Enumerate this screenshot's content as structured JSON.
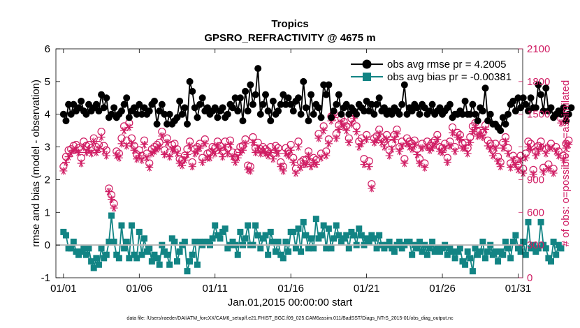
{
  "chart_data": {
    "type": "line",
    "title": "Tropics",
    "subtitle": "GPSRO_REFRACTIVITY @ 4675 m",
    "xlabel": "Jan.01,2015 00:00:00 start",
    "ylabel_left": "rmse and bias (model - observation)",
    "ylabel_right": "# of obs: o=possible; ∗=assimilated",
    "footnote": "data file: /Users/raeder/DAI/ATM_forcXX/CAM6_setup/f.e21.FHIST_BGC.f09_025.CAM6assim.011/BadSST/Diags_NTrS_2015-01/obs_diag_output.nc",
    "xlim": [
      0.5,
      31.3
    ],
    "ylim_left": [
      -1,
      6
    ],
    "ylim_right": [
      0,
      2100
    ],
    "x_ticks": [
      1,
      6,
      11,
      16,
      21,
      26,
      31
    ],
    "x_tick_labels": [
      "01/01",
      "01/06",
      "01/11",
      "01/16",
      "01/21",
      "01/26",
      "01/31"
    ],
    "y_ticks_left": [
      -1,
      0,
      1,
      2,
      3,
      4,
      5,
      6
    ],
    "y_ticks_right": [
      0,
      300,
      600,
      900,
      1200,
      1500,
      1800,
      2100
    ],
    "colors": {
      "rmse": "#000000",
      "bias": "#128484",
      "obs": "#d01c63",
      "zero": "#b9b9b9"
    },
    "series": [
      {
        "name": "obs avg rmse pr = 4.2005",
        "axis": "left",
        "values": [
          4.0,
          3.8,
          4.3,
          4.0,
          4.3,
          4.1,
          4.2,
          4.4,
          4.1,
          4.0,
          4.3,
          4.1,
          4.2,
          4.3,
          4.1,
          4.6,
          4.2,
          4.5,
          3.9,
          4.0,
          4.2,
          3.9,
          4.0,
          4.1,
          4.3,
          4.5,
          3.9,
          4.1,
          4.2,
          4.0,
          4.3,
          4.0,
          4.2,
          4.0,
          4.1,
          4.3,
          4.4,
          3.7,
          4.1,
          4.3,
          4.0,
          3.7,
          4.0,
          3.7,
          3.8,
          3.9,
          4.4,
          4.0,
          4.2,
          3.7,
          5.0,
          4.7,
          4.2,
          3.9,
          4.3,
          4.5,
          4.1,
          4.2,
          4.0,
          4.1,
          4.2,
          3.9,
          4.1,
          4.2,
          3.9,
          4.0,
          4.3,
          4.2,
          4.5,
          4.1,
          4.5,
          3.8,
          4.7,
          4.1,
          4.9,
          4.3,
          4.6,
          5.4,
          4.0,
          4.3,
          4.6,
          4.1,
          3.8,
          4.4,
          4.0,
          4.1,
          4.3,
          4.6,
          4.3,
          4.5,
          4.3,
          4.1,
          4.4,
          4.5,
          4.0,
          5.0,
          4.2,
          3.8,
          4.6,
          4.0,
          4.3,
          4.2,
          3.9,
          4.9,
          4.6,
          4.9,
          3.9,
          4.1,
          4.3,
          4.6,
          4.0,
          4.2,
          4.3,
          4.0,
          4.2,
          4.1,
          4.0,
          4.3,
          4.2,
          4.1,
          4.4,
          4.1,
          4.3,
          4.0,
          4.3,
          4.5,
          4.1,
          4.2,
          4.0,
          4.1,
          4.0,
          4.2,
          4.1,
          4.0,
          4.3,
          4.9,
          4.0,
          4.2,
          4.1,
          4.3,
          4.2,
          4.0,
          4.3,
          4.2,
          4.0,
          4.1,
          4.3,
          4.0,
          4.1,
          4.2,
          4.0,
          4.1,
          4.2,
          4.3,
          3.9,
          4.0,
          4.0,
          4.1,
          4.0,
          4.4,
          4.0,
          4.0,
          4.3,
          4.0,
          3.8,
          4.2,
          4.1,
          4.8,
          3.8,
          4.0,
          3.7,
          3.7,
          3.6,
          3.5,
          3.9,
          3.7,
          4.0,
          4.3,
          4.4,
          4.1,
          4.5,
          4.2,
          4.5,
          4.3,
          4.1,
          4.5,
          4.2,
          4.2,
          4.9,
          4.6,
          4.1,
          4.8,
          4.1,
          4.2,
          3.9,
          4.0,
          4.1,
          4.0,
          4.2,
          3.8,
          4.0,
          4.2
        ]
      },
      {
        "name": "obs avg bias pr = -0.00381",
        "axis": "left",
        "values": [
          0.4,
          0.3,
          -0.1,
          -0.1,
          0.1,
          -0.2,
          -0.3,
          -0.2,
          -0.1,
          -0.3,
          -0.1,
          -0.5,
          -0.7,
          -0.4,
          -0.6,
          -0.1,
          -0.4,
          -0.3,
          0.1,
          0.9,
          0.1,
          -0.3,
          -0.4,
          0.6,
          -0.1,
          0.1,
          -0.4,
          0.6,
          -0.3,
          -0.4,
          0.4,
          -0.3,
          0.2,
          -0.2,
          -0.1,
          -0.5,
          -0.3,
          -0.4,
          -0.6,
          0.0,
          -0.2,
          -0.3,
          -0.6,
          0.2,
          0.1,
          -0.5,
          -0.2,
          0.0,
          0.1,
          -0.8,
          -0.5,
          -0.3,
          0.1,
          -0.6,
          0.1,
          0.0,
          0.1,
          0.1,
          0.0,
          0.2,
          0.6,
          0.3,
          0.2,
          0.4,
          0.5,
          -0.1,
          0.0,
          0.1,
          0.0,
          -0.3,
          0.4,
          0.0,
          0.2,
          0.6,
          0.0,
          0.0,
          0.6,
          0.3,
          -0.1,
          0.2,
          0.3,
          -0.3,
          0.4,
          0.1,
          -0.2,
          0.1,
          -0.3,
          -0.4,
          0.1,
          -0.2,
          0.4,
          0.4,
          -0.1,
          0.5,
          -0.2,
          0.7,
          0.3,
          -0.1,
          0.2,
          -0.1,
          0.8,
          0.2,
          0.3,
          0.6,
          -0.1,
          0.5,
          -0.1,
          0.2,
          0.6,
          0.3,
          0.1,
          0.2,
          0.3,
          -0.1,
          0.4,
          0.3,
          0.0,
          0.5,
          0.3,
          0.0,
          0.2,
          0.1,
          0.3,
          0.2,
          -0.1,
          0.3,
          0.0,
          -0.1,
          0.0,
          0.1,
          -0.1,
          -0.2,
          0.0,
          0.1,
          -0.1,
          0.0,
          0.1,
          0.1,
          -0.3,
          0.0,
          -0.1,
          0.1,
          -0.2,
          0.0,
          -0.3,
          -0.1,
          0.1,
          -0.2,
          -0.1,
          -0.2,
          -0.1,
          0.0,
          -0.3,
          -0.1,
          -0.2,
          -0.4,
          -0.2,
          -0.1,
          -0.5,
          -0.6,
          -0.2,
          -0.4,
          -0.8,
          -0.1,
          -0.3,
          -0.2,
          0.1,
          -0.4,
          -0.2,
          0.0,
          -0.3,
          -0.2,
          -0.5,
          -0.2,
          -0.3,
          0.1,
          -0.1,
          -0.4,
          0.1,
          0.3,
          -0.1,
          -0.2,
          0.1,
          -0.3,
          0.7,
          -0.1,
          0.0,
          -0.2,
          -0.1,
          0.7,
          0.0,
          -0.1,
          -0.4,
          -0.5,
          0.1,
          -0.3,
          0.0,
          -0.1
        ]
      },
      {
        "name": "possible",
        "axis": "right",
        "marker": "circle",
        "values": [
          1020,
          1110,
          1170,
          1180,
          1210,
          1220,
          1190,
          1100,
          1250,
          1210,
          1220,
          1190,
          1280,
          1200,
          1220,
          1340,
          1210,
          1170,
          820,
          760,
          680,
          1160,
          1140,
          1280,
          1390,
          1260,
          1420,
          1280,
          1210,
          1130,
          1170,
          1120,
          1260,
          1140,
          1050,
          1180,
          1200,
          1220,
          1240,
          1340,
          1170,
          1280,
          1150,
          1220,
          1230,
          1180,
          1090,
          1080,
          1120,
          1180,
          1250,
          1060,
          1180,
          1200,
          1230,
          1100,
          1270,
          1140,
          1150,
          1200,
          1190,
          1250,
          1210,
          1160,
          1250,
          1190,
          1260,
          1150,
          1100,
          1150,
          1200,
          1210,
          1270,
          1030,
          1020,
          1290,
          1190,
          1240,
          1180,
          1200,
          1180,
          1160,
          1200,
          1140,
          1210,
          1190,
          1060,
          1020,
          1190,
          1160,
          1220,
          1100,
          1000,
          1250,
          1060,
          1080,
          1080,
          1160,
          1060,
          1100,
          1080,
          1320,
          1140,
          1390,
          1160,
          1270,
          1480,
          1510,
          1320,
          1400,
          1460,
          1430,
          1390,
          1280,
          1460,
          1510,
          1390,
          1250,
          1280,
          1090,
          1310,
          1070,
          860,
          1280,
          1300,
          1360,
          1280,
          1250,
          1310,
          1170,
          1230,
          1310,
          1360,
          1200,
          1250,
          1090,
          1280,
          1250,
          1230,
          1260,
          1180,
          1090,
          1230,
          1050,
          1250,
          1210,
          1240,
          1260,
          1310,
          1200,
          1190,
          1230,
          1100,
          1250,
          1380,
          1200,
          1330,
          1310,
          1230,
          1240,
          1190,
          1290,
          1390,
          1420,
          1340,
          1350,
          1330,
          1400,
          1260,
          1230,
          1170,
          1230,
          1110,
          1060,
          1240,
          1290,
          1190,
          1050,
          1120,
          1080,
          1030,
          1120,
          1000,
          1140,
          1250,
          1230,
          990,
          1160,
          1210,
          1250,
          1010,
          1180,
          1040,
          1230,
          1000,
          1200,
          1160,
          1460,
          1120,
          1230,
          1260
        ]
      },
      {
        "name": "assimilated",
        "axis": "right",
        "marker": "asterisk",
        "values": [
          980,
          1060,
          1110,
          1140,
          1170,
          1170,
          1150,
          1050,
          1200,
          1150,
          1170,
          1140,
          1250,
          1150,
          1180,
          1290,
          1160,
          1120,
          790,
          720,
          640,
          1120,
          1100,
          1230,
          1350,
          1210,
          1380,
          1230,
          1170,
          1090,
          1120,
          1080,
          1220,
          1100,
          1010,
          1140,
          1160,
          1180,
          1200,
          1300,
          1130,
          1240,
          1110,
          1180,
          1180,
          1140,
          1050,
          1030,
          1080,
          1130,
          1210,
          1020,
          1140,
          1160,
          1190,
          1060,
          1230,
          1100,
          1100,
          1160,
          1140,
          1210,
          1170,
          1110,
          1200,
          1140,
          1220,
          1110,
          1060,
          1100,
          1150,
          1170,
          1230,
          990,
          980,
          1240,
          1150,
          1190,
          1140,
          1160,
          1140,
          1120,
          1150,
          1090,
          1170,
          1140,
          1020,
          980,
          1140,
          1120,
          1170,
          1060,
          960,
          1200,
          1010,
          1050,
          1040,
          1120,
          1020,
          1060,
          1040,
          1280,
          1100,
          1350,
          1120,
          1230,
          1440,
          1470,
          1280,
          1360,
          1420,
          1390,
          1350,
          1240,
          1410,
          1460,
          1340,
          1200,
          1230,
          1040,
          1270,
          1020,
          820,
          1240,
          1260,
          1320,
          1240,
          1200,
          1270,
          1120,
          1180,
          1270,
          1320,
          1160,
          1210,
          1050,
          1230,
          1200,
          1180,
          1220,
          1130,
          1050,
          1190,
          1010,
          1200,
          1170,
          1190,
          1220,
          1270,
          1160,
          1150,
          1190,
          1060,
          1210,
          1330,
          1160,
          1290,
          1270,
          1190,
          1190,
          1140,
          1240,
          1340,
          1380,
          1300,
          1310,
          1290,
          1360,
          1210,
          1180,
          1120,
          1190,
          1070,
          1020,
          1190,
          1250,
          1140,
          1010,
          1080,
          1040,
          990,
          1080,
          960,
          1100,
          1200,
          1180,
          950,
          1120,
          1160,
          1200,
          970,
          1140,
          1000,
          1190,
          960,
          1160,
          1120,
          1420,
          1080,
          1190,
          1220
        ]
      }
    ]
  }
}
